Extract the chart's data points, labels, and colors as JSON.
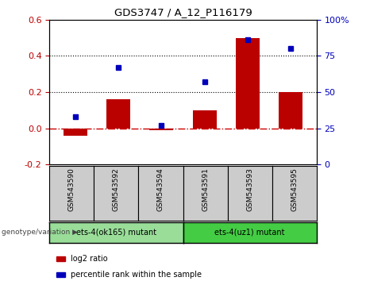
{
  "title": "GDS3747 / A_12_P116179",
  "samples": [
    "GSM543590",
    "GSM543592",
    "GSM543594",
    "GSM543591",
    "GSM543593",
    "GSM543595"
  ],
  "log2_ratio": [
    -0.04,
    0.16,
    -0.01,
    0.1,
    0.5,
    0.2
  ],
  "percentile_rank": [
    33,
    67,
    27,
    57,
    86,
    80
  ],
  "bar_color": "#bb0000",
  "dot_color": "#0000bb",
  "ylim_left": [
    -0.2,
    0.6
  ],
  "ylim_right": [
    0,
    100
  ],
  "yticks_left": [
    -0.2,
    0.0,
    0.2,
    0.4,
    0.6
  ],
  "yticks_right": [
    0,
    25,
    50,
    75,
    100
  ],
  "hlines": [
    0.2,
    0.4
  ],
  "hline_color": "black",
  "zero_line_color": "#cc0000",
  "groups": [
    {
      "label": "ets-4(ok165) mutant",
      "indices": [
        0,
        1,
        2
      ],
      "color": "#99dd99"
    },
    {
      "label": "ets-4(uz1) mutant",
      "indices": [
        3,
        4,
        5
      ],
      "color": "#44cc44"
    }
  ],
  "legend_items": [
    {
      "label": "log2 ratio",
      "color": "#bb0000"
    },
    {
      "label": "percentile rank within the sample",
      "color": "#0000bb"
    }
  ],
  "genotype_label": "genotype/variation",
  "bar_width": 0.55,
  "sample_box_color": "#cccccc",
  "group_border_color": "#000000",
  "fig_bg": "#ffffff"
}
